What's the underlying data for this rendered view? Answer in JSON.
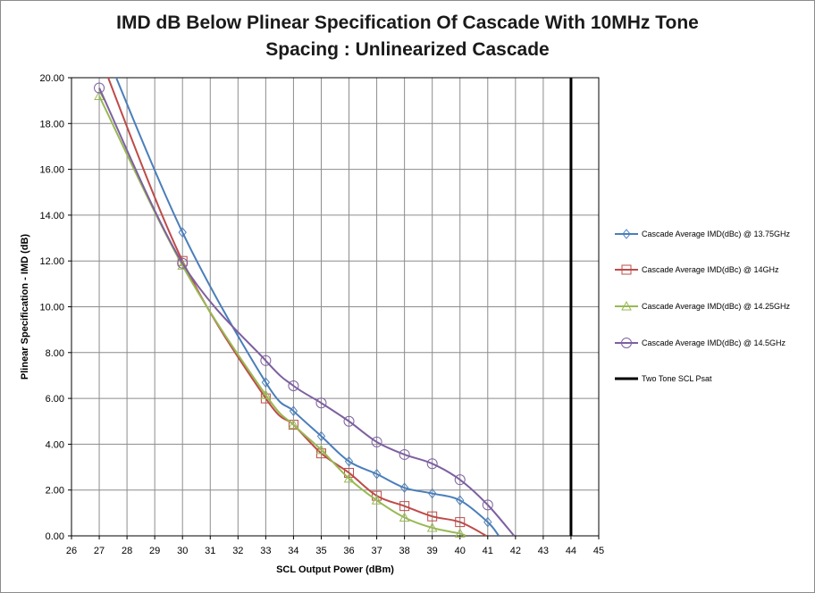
{
  "chart_data": {
    "type": "line",
    "title_line1": "IMD dB Below Plinear Specification Of Cascade With 10MHz Tone",
    "title_line2": "Spacing : Unlinearized Cascade",
    "xlabel": "SCL Output Power (dBm)",
    "ylabel": "Plinear Specification  - IMD (dB)",
    "xlim": [
      26,
      45
    ],
    "ylim": [
      0,
      20
    ],
    "xticks": [
      "26",
      "27",
      "28",
      "29",
      "30",
      "31",
      "32",
      "33",
      "34",
      "35",
      "36",
      "37",
      "38",
      "39",
      "40",
      "41",
      "42",
      "43",
      "44",
      "45"
    ],
    "yticks": [
      "0.00",
      "2.00",
      "4.00",
      "6.00",
      "8.00",
      "10.00",
      "12.00",
      "14.00",
      "16.00",
      "18.00",
      "20.00"
    ],
    "grid": true,
    "legend_position": "right",
    "series": [
      {
        "name": "Cascade Average IMD(dBc) @ 13.75GHz",
        "color": "#4a7ebb",
        "marker": "diamond",
        "points": [
          [
            27,
            21.8
          ],
          [
            30,
            13.25
          ],
          [
            33,
            6.7
          ],
          [
            34,
            5.45
          ],
          [
            35,
            4.35
          ],
          [
            36,
            3.25
          ],
          [
            37,
            2.7
          ],
          [
            38,
            2.1
          ],
          [
            39,
            1.85
          ],
          [
            40,
            1.55
          ],
          [
            41,
            0.6
          ],
          [
            41.4,
            0.0
          ]
        ]
      },
      {
        "name": "Cascade Average IMD(dBc) @ 14GHz",
        "color": "#be4b48",
        "marker": "square",
        "points": [
          [
            27,
            21.0
          ],
          [
            30,
            12.0
          ],
          [
            33,
            6.0
          ],
          [
            34,
            4.85
          ],
          [
            35,
            3.6
          ],
          [
            36,
            2.75
          ],
          [
            37,
            1.75
          ],
          [
            38,
            1.3
          ],
          [
            39,
            0.85
          ],
          [
            40,
            0.6
          ],
          [
            40.95,
            0.0
          ]
        ]
      },
      {
        "name": "Cascade Average IMD(dBc) @ 14.25GHz",
        "color": "#98b954",
        "marker": "triangle",
        "points": [
          [
            27,
            19.2
          ],
          [
            30,
            11.8
          ],
          [
            33,
            6.15
          ],
          [
            34,
            4.85
          ],
          [
            35,
            3.75
          ],
          [
            36,
            2.5
          ],
          [
            37,
            1.55
          ],
          [
            38,
            0.8
          ],
          [
            39,
            0.35
          ],
          [
            40,
            0.1
          ],
          [
            40.2,
            0.0
          ]
        ]
      },
      {
        "name": "Cascade Average IMD(dBc) @ 14.5GHz",
        "color": "#7d60a0",
        "marker": "circle",
        "points": [
          [
            27,
            19.55
          ],
          [
            30,
            11.9
          ],
          [
            33,
            7.65
          ],
          [
            34,
            6.55
          ],
          [
            35,
            5.8
          ],
          [
            36,
            5.0
          ],
          [
            37,
            4.1
          ],
          [
            38,
            3.55
          ],
          [
            39,
            3.15
          ],
          [
            40,
            2.45
          ],
          [
            41,
            1.35
          ],
          [
            41.95,
            0.0
          ]
        ]
      },
      {
        "name": "Two Tone SCL Psat",
        "color": "#000000",
        "marker": "none",
        "points": [
          [
            44,
            0
          ],
          [
            44,
            20
          ]
        ]
      }
    ]
  }
}
